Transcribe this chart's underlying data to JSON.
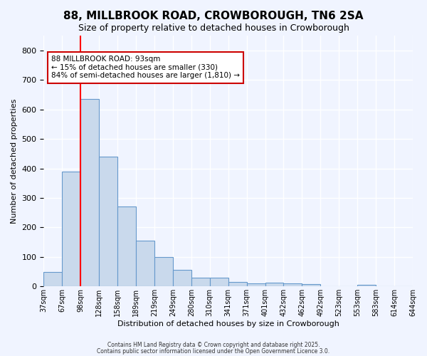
{
  "title": "88, MILLBROOK ROAD, CROWBOROUGH, TN6 2SA",
  "subtitle": "Size of property relative to detached houses in Crowborough",
  "xlabel": "Distribution of detached houses by size in Crowborough",
  "ylabel": "Number of detached properties",
  "bar_heights": [
    50,
    390,
    635,
    440,
    270,
    155,
    100,
    57,
    30,
    30,
    15,
    10,
    12,
    10,
    7,
    0,
    0,
    6,
    0,
    0
  ],
  "bar_color": "#c9d9ec",
  "bar_edge_color": "#6699cc",
  "x_labels": [
    "37sqm",
    "67sqm",
    "98sqm",
    "128sqm",
    "158sqm",
    "189sqm",
    "219sqm",
    "249sqm",
    "280sqm",
    "310sqm",
    "341sqm",
    "371sqm",
    "401sqm",
    "432sqm",
    "462sqm",
    "492sqm",
    "523sqm",
    "553sqm",
    "583sqm",
    "614sqm",
    "644sqm"
  ],
  "red_line_x": 2,
  "ylim": [
    0,
    850
  ],
  "yticks": [
    0,
    100,
    200,
    300,
    400,
    500,
    600,
    700,
    800
  ],
  "annotation_title": "88 MILLBROOK ROAD: 93sqm",
  "annotation_line2": "← 15% of detached houses are smaller (330)",
  "annotation_line3": "84% of semi-detached houses are larger (1,810) →",
  "annotation_box_color": "#ffffff",
  "annotation_box_edge": "#cc0000",
  "footer_line1": "Contains HM Land Registry data © Crown copyright and database right 2025.",
  "footer_line2": "Contains public sector information licensed under the Open Government Licence 3.0.",
  "background_color": "#f0f4ff",
  "grid_color": "#ffffff"
}
